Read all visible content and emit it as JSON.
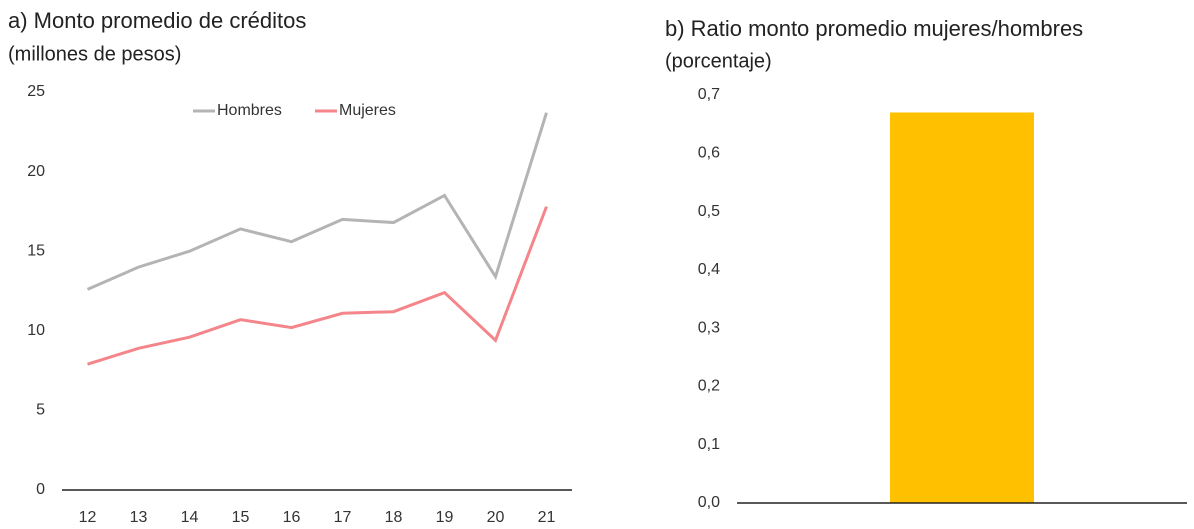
{
  "chart_data": [
    {
      "type": "line",
      "title": "a) Monto promedio de créditos",
      "subtitle": "(millones de pesos)",
      "categories": [
        "12",
        "13",
        "14",
        "15",
        "16",
        "17",
        "18",
        "19",
        "20",
        "21"
      ],
      "series": [
        {
          "name": "Hombres",
          "color": "#b4b4b4",
          "values": [
            12.6,
            14.0,
            15.0,
            16.4,
            15.6,
            17.0,
            16.8,
            18.5,
            13.4,
            23.7
          ]
        },
        {
          "name": "Mujeres",
          "color": "#f4858a",
          "values": [
            7.9,
            8.9,
            9.6,
            10.7,
            10.2,
            11.1,
            11.2,
            12.4,
            9.4,
            17.8
          ]
        }
      ],
      "ylim": [
        0,
        25
      ],
      "yticks": [
        0,
        5,
        10,
        15,
        20,
        25
      ],
      "legend": "top"
    },
    {
      "type": "bar",
      "title": "b) Ratio monto promedio mujeres/hombres",
      "subtitle": "(porcentaje)",
      "categories": [
        null
      ],
      "values": [
        0.67
      ],
      "color": "#ffc000",
      "ylim": [
        0,
        0.7
      ],
      "yticks": [
        {
          "value": 0,
          "label": "0,0"
        },
        {
          "value": 0.1,
          "label": "0,1"
        },
        {
          "value": 0.2,
          "label": "0,2"
        },
        {
          "value": 0.3,
          "label": "0,3"
        },
        {
          "value": 0.4,
          "label": "0,4"
        },
        {
          "value": 0.5,
          "label": "0,5"
        },
        {
          "value": 0.6,
          "label": "0,6"
        },
        {
          "value": 0.7,
          "label": "0,7"
        }
      ]
    }
  ]
}
